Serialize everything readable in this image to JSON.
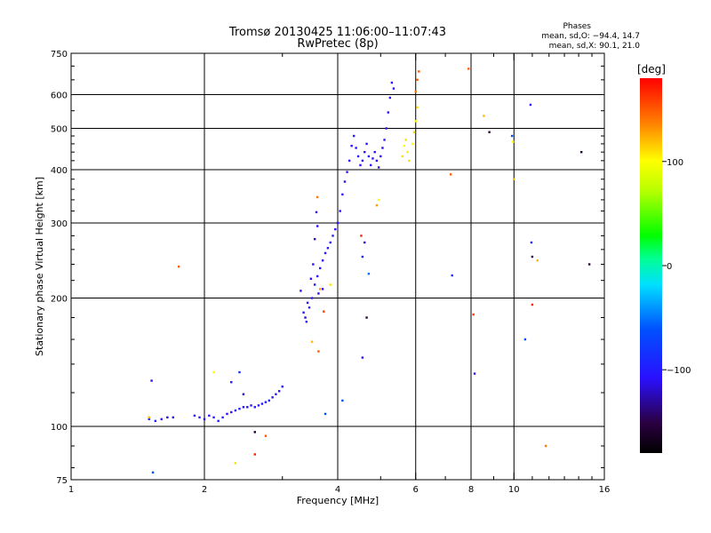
{
  "chart_data": {
    "type": "scatter",
    "title": "Tromsø 20130425 11:06:00–11:07:43",
    "subtitle": "RwPretec (8p)",
    "xlabel": "Frequency [MHz]",
    "ylabel": "Stationary phase Virtual Height [km]",
    "x_scale": "log",
    "y_scale": "log",
    "xlim": [
      1,
      16
    ],
    "ylim": [
      75,
      750
    ],
    "x_ticks": [
      1,
      2,
      4,
      6,
      8,
      10,
      16
    ],
    "y_ticks": [
      75,
      100,
      200,
      300,
      400,
      500,
      600,
      750
    ],
    "grid": true,
    "phase_info": {
      "title": "Phases",
      "line_o": "mean, sd,O: −94.4, 14.7",
      "line_x": "mean, sd,X:  90.1, 21.0"
    },
    "colorbar": {
      "label": "[deg]",
      "min": -180,
      "max": 180,
      "ticks": [
        100,
        0,
        -100
      ]
    },
    "series": [
      {
        "points": [
          [
            1.52,
            128,
            -110
          ],
          [
            1.53,
            78,
            -60
          ],
          [
            1.5,
            104,
            -95
          ],
          [
            1.55,
            103,
            -100
          ],
          [
            1.6,
            104,
            -105
          ],
          [
            1.65,
            105,
            -120
          ],
          [
            1.7,
            105,
            -120
          ],
          [
            1.75,
            237,
            150
          ],
          [
            1.5,
            105,
            120
          ],
          [
            1.9,
            106,
            -110
          ],
          [
            1.95,
            105,
            -100
          ],
          [
            2.0,
            104,
            -110
          ],
          [
            2.05,
            106,
            -105
          ],
          [
            2.1,
            105,
            -110
          ],
          [
            2.15,
            103,
            -100
          ],
          [
            2.2,
            105,
            -100
          ],
          [
            2.25,
            107,
            -110
          ],
          [
            2.3,
            108,
            -105
          ],
          [
            2.35,
            109,
            -110
          ],
          [
            2.4,
            110,
            -100
          ],
          [
            2.45,
            111,
            -110
          ],
          [
            2.5,
            111,
            -105
          ],
          [
            2.55,
            112,
            -100
          ],
          [
            2.6,
            111,
            -110
          ],
          [
            2.65,
            112,
            -105
          ],
          [
            2.7,
            113,
            -110
          ],
          [
            2.75,
            114,
            -110
          ],
          [
            2.8,
            115,
            -100
          ],
          [
            2.85,
            117,
            -110
          ],
          [
            2.9,
            119,
            -105
          ],
          [
            2.95,
            121,
            -110
          ],
          [
            3.0,
            124,
            -110
          ],
          [
            2.45,
            119,
            -120
          ],
          [
            2.3,
            127,
            -100
          ],
          [
            2.4,
            134,
            -90
          ],
          [
            2.1,
            134,
            100
          ],
          [
            2.6,
            97,
            -160
          ],
          [
            2.75,
            95,
            150
          ],
          [
            2.6,
            86,
            170
          ],
          [
            2.35,
            82,
            110
          ],
          [
            3.3,
            208,
            -110
          ],
          [
            3.35,
            185,
            -100
          ],
          [
            3.38,
            180,
            -120
          ],
          [
            3.4,
            176,
            -110
          ],
          [
            3.45,
            190,
            -110
          ],
          [
            3.5,
            200,
            -105
          ],
          [
            3.55,
            215,
            -110
          ],
          [
            3.6,
            225,
            -110
          ],
          [
            3.65,
            235,
            -100
          ],
          [
            3.7,
            245,
            -110
          ],
          [
            3.75,
            255,
            -105
          ],
          [
            3.8,
            262,
            -110
          ],
          [
            3.85,
            270,
            -110
          ],
          [
            3.9,
            280,
            -100
          ],
          [
            3.95,
            290,
            -110
          ],
          [
            4.0,
            300,
            -110
          ],
          [
            3.55,
            275,
            -120
          ],
          [
            3.6,
            295,
            -110
          ],
          [
            3.58,
            318,
            -110
          ],
          [
            3.52,
            240,
            -110
          ],
          [
            3.48,
            222,
            -110
          ],
          [
            3.62,
            205,
            -110
          ],
          [
            3.42,
            195,
            -110
          ],
          [
            3.7,
            210,
            -110
          ],
          [
            3.62,
            150,
            150
          ],
          [
            3.72,
            186,
            160
          ],
          [
            3.5,
            158,
            120
          ],
          [
            3.85,
            215,
            110
          ],
          [
            3.6,
            345,
            140
          ],
          [
            3.65,
            210,
            130
          ],
          [
            4.05,
            320,
            -110
          ],
          [
            4.1,
            350,
            -110
          ],
          [
            4.15,
            375,
            -105
          ],
          [
            4.2,
            395,
            -110
          ],
          [
            4.25,
            420,
            -110
          ],
          [
            4.3,
            455,
            -110
          ],
          [
            4.35,
            480,
            -105
          ],
          [
            4.4,
            450,
            -110
          ],
          [
            4.45,
            430,
            -100
          ],
          [
            4.5,
            410,
            -110
          ],
          [
            4.55,
            420,
            -110
          ],
          [
            4.6,
            440,
            -110
          ],
          [
            4.65,
            460,
            -105
          ],
          [
            4.7,
            430,
            -110
          ],
          [
            4.75,
            410,
            -110
          ],
          [
            4.8,
            425,
            -110
          ],
          [
            4.85,
            440,
            -110
          ],
          [
            4.9,
            420,
            -110
          ],
          [
            4.95,
            405,
            -110
          ],
          [
            5.0,
            430,
            -110
          ],
          [
            5.05,
            450,
            -110
          ],
          [
            5.1,
            470,
            -105
          ],
          [
            5.15,
            500,
            -110
          ],
          [
            5.2,
            545,
            -110
          ],
          [
            5.25,
            590,
            -110
          ],
          [
            5.3,
            640,
            -110
          ],
          [
            5.35,
            620,
            -110
          ],
          [
            5.6,
            430,
            110
          ],
          [
            5.65,
            455,
            100
          ],
          [
            5.7,
            470,
            110
          ],
          [
            5.75,
            440,
            105
          ],
          [
            5.8,
            420,
            110
          ],
          [
            5.9,
            460,
            100
          ],
          [
            5.95,
            490,
            110
          ],
          [
            6.0,
            520,
            100
          ],
          [
            6.05,
            560,
            110
          ],
          [
            6.0,
            610,
            140
          ],
          [
            6.05,
            650,
            150
          ],
          [
            4.52,
            280,
            170
          ],
          [
            4.55,
            250,
            -100
          ],
          [
            4.6,
            270,
            -120
          ],
          [
            4.7,
            228,
            -50
          ],
          [
            4.9,
            330,
            130
          ],
          [
            4.95,
            340,
            100
          ],
          [
            4.65,
            180,
            -150
          ],
          [
            4.55,
            145,
            -110
          ],
          [
            4.1,
            115,
            -60
          ],
          [
            3.75,
            107,
            -60
          ],
          [
            7.2,
            390,
            150
          ],
          [
            7.25,
            226,
            -90
          ],
          [
            8.1,
            183,
            160
          ],
          [
            8.15,
            133,
            -110
          ],
          [
            8.55,
            535,
            120
          ],
          [
            8.8,
            490,
            -150
          ],
          [
            9.9,
            480,
            -60
          ],
          [
            9.95,
            465,
            100
          ],
          [
            10.0,
            380,
            120
          ],
          [
            10.6,
            160,
            -60
          ],
          [
            10.9,
            568,
            -110
          ],
          [
            10.95,
            270,
            -100
          ],
          [
            11.0,
            250,
            -150
          ],
          [
            11.3,
            245,
            120
          ],
          [
            11.0,
            193,
            170
          ],
          [
            11.8,
            90,
            140
          ],
          [
            14.2,
            440,
            -160
          ],
          [
            14.8,
            240,
            -160
          ],
          [
            7.9,
            690,
            150
          ],
          [
            6.1,
            680,
            150
          ]
        ]
      }
    ]
  }
}
